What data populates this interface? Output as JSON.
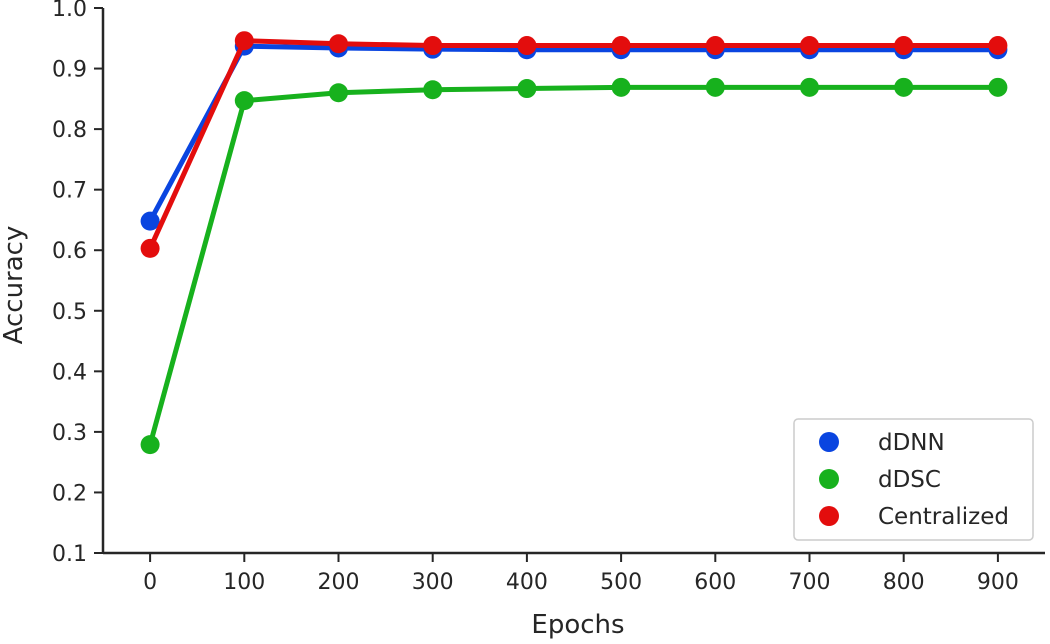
{
  "chart_data": {
    "type": "line",
    "title": "",
    "xlabel": "Epochs",
    "ylabel": "Accuracy",
    "x": [
      0,
      100,
      200,
      300,
      400,
      500,
      600,
      700,
      800,
      900
    ],
    "x_tick_labels": [
      "0",
      "100",
      "200",
      "300",
      "400",
      "500",
      "600",
      "700",
      "800",
      "900"
    ],
    "y_ticks": [
      0.1,
      0.2,
      0.3,
      0.4,
      0.5,
      0.6,
      0.7,
      0.8,
      0.9,
      1.0
    ],
    "y_tick_labels": [
      "0.1",
      "0.2",
      "0.3",
      "0.4",
      "0.5",
      "0.6",
      "0.7",
      "0.8",
      "0.9",
      "1.0"
    ],
    "ylim": [
      0.1,
      1.0
    ],
    "grid": false,
    "legend_position": "bottom-right",
    "series": [
      {
        "name": "dDNN",
        "color": "#0a45e0",
        "values": [
          0.648,
          0.937,
          0.934,
          0.932,
          0.931,
          0.931,
          0.931,
          0.931,
          0.931,
          0.931
        ]
      },
      {
        "name": "dDSC",
        "color": "#17b11d",
        "values": [
          0.279,
          0.847,
          0.86,
          0.865,
          0.867,
          0.869,
          0.869,
          0.869,
          0.869,
          0.869
        ]
      },
      {
        "name": "Centralized",
        "color": "#e30d0d",
        "values": [
          0.603,
          0.946,
          0.941,
          0.938,
          0.938,
          0.938,
          0.938,
          0.938,
          0.938,
          0.938
        ]
      }
    ]
  }
}
